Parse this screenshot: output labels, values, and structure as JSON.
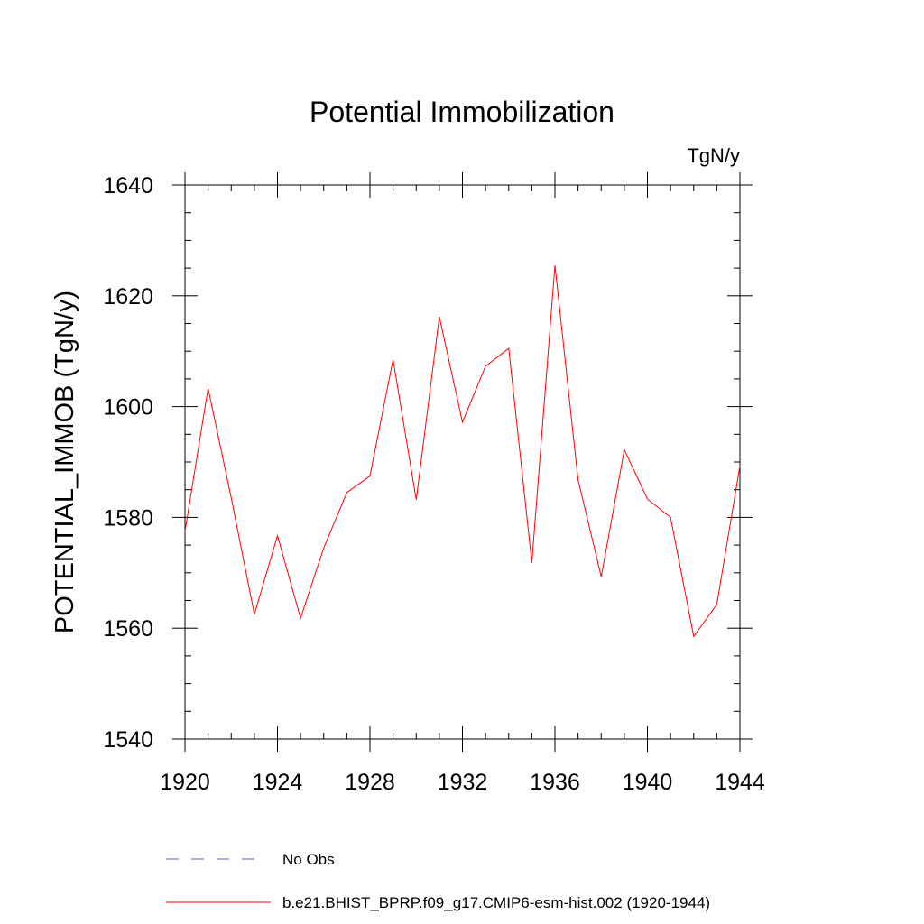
{
  "chart_data": {
    "type": "line",
    "title": "Potential Immobilization",
    "units_label": "TgN/y",
    "ylabel": "POTENTIAL_IMMOB  (TgN/y)",
    "xlabel": "",
    "xlim": [
      1920,
      1944
    ],
    "ylim": [
      1540,
      1640
    ],
    "x_ticks": [
      1920,
      1924,
      1928,
      1932,
      1936,
      1940,
      1944
    ],
    "y_ticks": [
      1540,
      1560,
      1580,
      1600,
      1620,
      1640
    ],
    "x_minor_step": 1,
    "y_minor_step": 5,
    "grid": false,
    "legend_position": "bottom",
    "series": [
      {
        "name": "b.e21.BHIST_BPRP.f09_g17.CMIP6-esm-hist.002 (1920-1944)",
        "color": "#ff0000",
        "dash": "solid",
        "x": [
          1920,
          1921,
          1922,
          1923,
          1924,
          1925,
          1926,
          1927,
          1928,
          1929,
          1930,
          1931,
          1932,
          1933,
          1934,
          1935,
          1936,
          1937,
          1938,
          1939,
          1940,
          1941,
          1942,
          1943,
          1944
        ],
        "values": [
          1577.5,
          1603.3,
          1583.5,
          1562.5,
          1576.7,
          1561.8,
          1574.5,
          1584.5,
          1587.5,
          1608.5,
          1583.2,
          1616.2,
          1597.2,
          1607.3,
          1610.5,
          1571.8,
          1625.5,
          1586.8,
          1569.3,
          1592.2,
          1583.3,
          1580.0,
          1558.5,
          1564.3,
          1589.3
        ]
      }
    ],
    "legend": [
      {
        "label": "No Obs",
        "color": "#6a5acd",
        "dash": "dashed"
      },
      {
        "label": "b.e21.BHIST_BPRP.f09_g17.CMIP6-esm-hist.002 (1920-1944)",
        "color": "#ff0000",
        "dash": "solid"
      }
    ]
  }
}
